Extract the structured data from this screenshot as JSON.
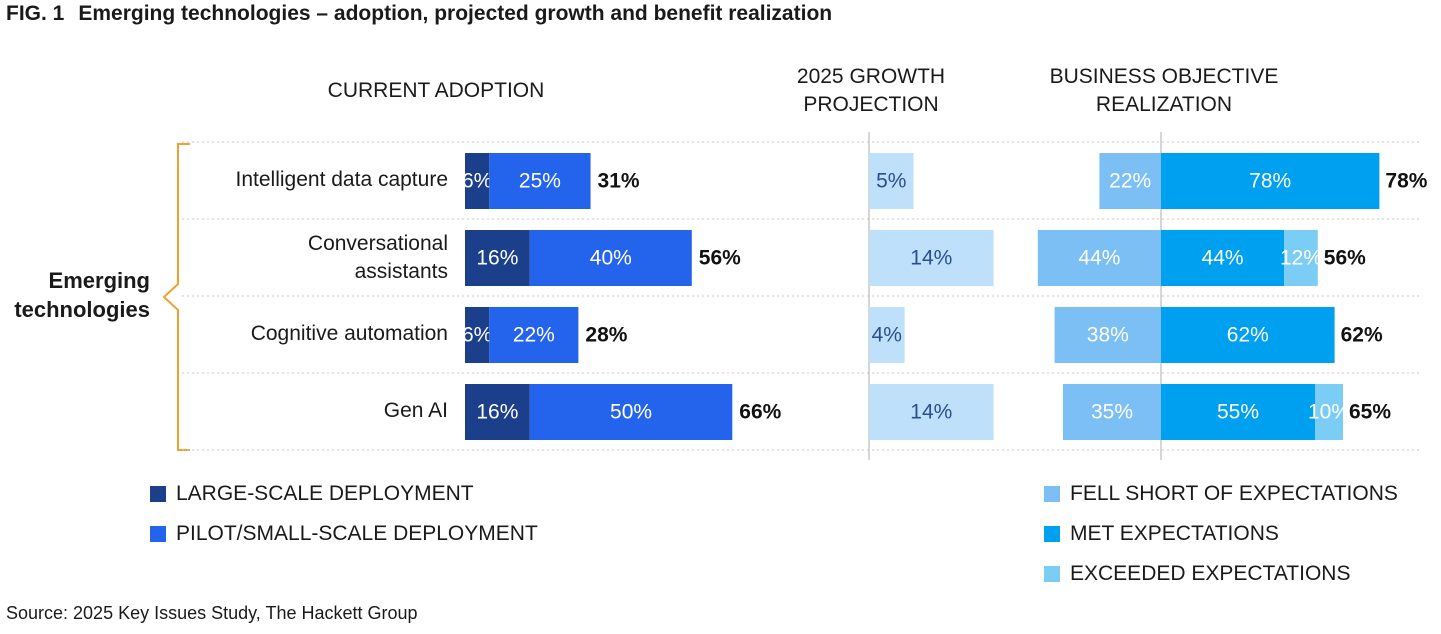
{
  "title": {
    "fig_number": "FIG. 1",
    "text": "Emerging technologies – adoption, projected growth and benefit realization"
  },
  "source": "Source: 2025 Key Issues Study, The Hackett Group",
  "colors": {
    "large_scale": "#1B3F8B",
    "pilot": "#2463EB",
    "growth": "#BFE0FA",
    "fell_short": "#7BBFF5",
    "met": "#00A0F0",
    "exceeded": "#7CCDF6",
    "axis": "#c8c8c8",
    "bracket": "#F0A030"
  },
  "chart_data": {
    "type": "bar",
    "group_label": "Emerging technologies",
    "categories": [
      "Intelligent data capture",
      "Conversational assistants",
      "Cognitive automation",
      "Gen AI"
    ],
    "panels": {
      "current_adoption": {
        "heading": "CURRENT ADOPTION",
        "orientation": "horizontal",
        "stacked": true,
        "series": [
          {
            "name": "LARGE-SCALE DEPLOYMENT",
            "values": [
              6,
              16,
              6,
              16
            ],
            "labels": [
              "6%",
              "16%",
              "6%",
              "16%"
            ]
          },
          {
            "name": "PILOT/SMALL-SCALE DEPLOYMENT",
            "values": [
              25,
              40,
              22,
              50
            ],
            "labels": [
              "25%",
              "40%",
              "22%",
              "50%"
            ]
          }
        ],
        "totals": [
          "31%",
          "56%",
          "28%",
          "66%"
        ]
      },
      "growth_projection": {
        "heading": "2025 GROWTH PROJECTION",
        "orientation": "horizontal",
        "series": [
          {
            "name": "2025 growth projection",
            "values": [
              5,
              14,
              4,
              14
            ],
            "labels": [
              "5%",
              "14%",
              "4%",
              "14%"
            ]
          }
        ]
      },
      "objective_realization": {
        "heading": "BUSINESS OBJECTIVE REALIZATION",
        "orientation": "horizontal",
        "diverging": true,
        "series": [
          {
            "name": "FELL SHORT OF EXPECTATIONS",
            "side": "left",
            "values": [
              22,
              44,
              38,
              35
            ],
            "labels": [
              "22%",
              "44%",
              "38%",
              "35%"
            ]
          },
          {
            "name": "MET EXPECTATIONS",
            "side": "right",
            "values": [
              78,
              44,
              62,
              55
            ],
            "labels": [
              "78%",
              "44%",
              "62%",
              "55%"
            ]
          },
          {
            "name": "EXCEEDED EXPECTATIONS",
            "side": "right",
            "values": [
              0,
              12,
              0,
              10
            ],
            "labels": [
              "",
              "12%",
              "",
              "10%"
            ]
          }
        ],
        "totals": [
          "78%",
          "56%",
          "62%",
          "65%"
        ]
      }
    },
    "legend": [
      {
        "label": "LARGE-SCALE DEPLOYMENT",
        "color": "#1B3F8B"
      },
      {
        "label": "PILOT/SMALL-SCALE DEPLOYMENT",
        "color": "#2463EB"
      },
      {
        "label": "FELL SHORT OF EXPECTATIONS",
        "color": "#7BBFF5"
      },
      {
        "label": "MET EXPECTATIONS",
        "color": "#00A0F0"
      },
      {
        "label": "EXCEEDED EXPECTATIONS",
        "color": "#7CCDF6"
      }
    ]
  }
}
